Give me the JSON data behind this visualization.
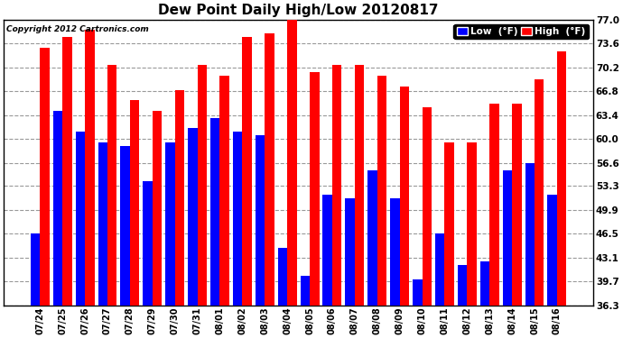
{
  "title": "Dew Point Daily High/Low 20120817",
  "copyright": "Copyright 2012 Cartronics.com",
  "categories": [
    "07/24",
    "07/25",
    "07/26",
    "07/27",
    "07/28",
    "07/29",
    "07/30",
    "07/31",
    "08/01",
    "08/02",
    "08/03",
    "08/04",
    "08/05",
    "08/06",
    "08/07",
    "08/08",
    "08/09",
    "08/10",
    "08/11",
    "08/12",
    "08/13",
    "08/14",
    "08/15",
    "08/16"
  ],
  "low_values": [
    46.5,
    64.0,
    61.0,
    59.5,
    59.0,
    54.0,
    59.5,
    61.5,
    63.0,
    61.0,
    60.5,
    44.5,
    40.5,
    52.0,
    51.5,
    55.5,
    51.5,
    40.0,
    46.5,
    42.0,
    42.5,
    55.5,
    56.5,
    52.0
  ],
  "high_values": [
    73.0,
    74.5,
    75.5,
    70.5,
    65.5,
    64.0,
    67.0,
    70.5,
    69.0,
    74.5,
    75.0,
    77.5,
    69.5,
    70.5,
    70.5,
    69.0,
    67.5,
    64.5,
    59.5,
    59.5,
    65.0,
    65.0,
    68.5,
    72.5
  ],
  "low_color": "#0000ff",
  "high_color": "#ff0000",
  "bg_color": "#ffffff",
  "grid_color": "#999999",
  "yticks": [
    36.3,
    39.7,
    43.1,
    46.5,
    49.9,
    53.3,
    56.6,
    60.0,
    63.4,
    66.8,
    70.2,
    73.6,
    77.0
  ],
  "ylim_min": 36.3,
  "ylim_max": 77.0,
  "title_fontsize": 11,
  "legend_low_label": "Low  (°F)",
  "legend_high_label": "High  (°F)"
}
